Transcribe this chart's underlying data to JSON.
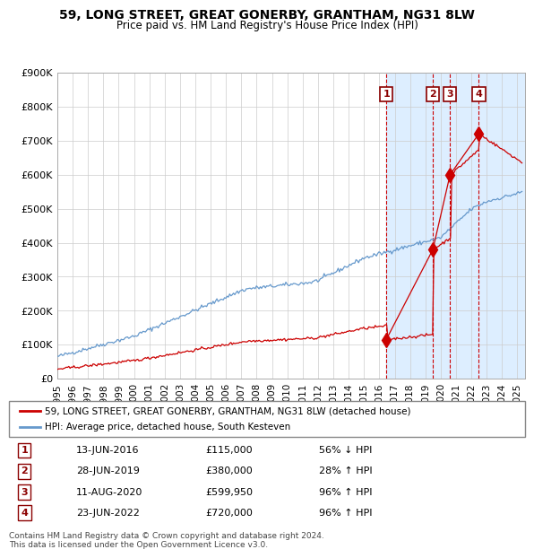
{
  "title": "59, LONG STREET, GREAT GONERBY, GRANTHAM, NG31 8LW",
  "subtitle": "Price paid vs. HM Land Registry's House Price Index (HPI)",
  "ylabel": "",
  "xlabel": "",
  "ylim": [
    0,
    900000
  ],
  "yticks": [
    0,
    100000,
    200000,
    300000,
    400000,
    500000,
    600000,
    700000,
    800000,
    900000
  ],
  "ytick_labels": [
    "£0",
    "£100K",
    "£200K",
    "£300K",
    "£400K",
    "£500K",
    "£600K",
    "£700K",
    "£800K",
    "£900K"
  ],
  "xlim_start": 1995.0,
  "xlim_end": 2025.5,
  "hpi_color": "#6699cc",
  "price_color": "#cc0000",
  "sale_marker_color": "#cc0000",
  "dashed_line_color": "#cc0000",
  "highlight_bg_color": "#ddeeff",
  "transactions": [
    {
      "num": 1,
      "date_str": "13-JUN-2016",
      "date_x": 2016.45,
      "price": 115000,
      "pct": "56%",
      "dir": "↓"
    },
    {
      "num": 2,
      "date_str": "28-JUN-2019",
      "date_x": 2019.49,
      "price": 380000,
      "pct": "28%",
      "dir": "↑"
    },
    {
      "num": 3,
      "date_str": "11-AUG-2020",
      "date_x": 2020.61,
      "price": 599950,
      "pct": "96%",
      "dir": "↑"
    },
    {
      "num": 4,
      "date_str": "23-JUN-2022",
      "date_x": 2022.48,
      "price": 720000,
      "pct": "96%",
      "dir": "↑"
    }
  ],
  "legend_line1": "59, LONG STREET, GREAT GONERBY, GRANTHAM, NG31 8LW (detached house)",
  "legend_line2": "HPI: Average price, detached house, South Kesteven",
  "footer": "Contains HM Land Registry data © Crown copyright and database right 2024.\nThis data is licensed under the Open Government Licence v3.0.",
  "background_color": "#f0f4f8"
}
